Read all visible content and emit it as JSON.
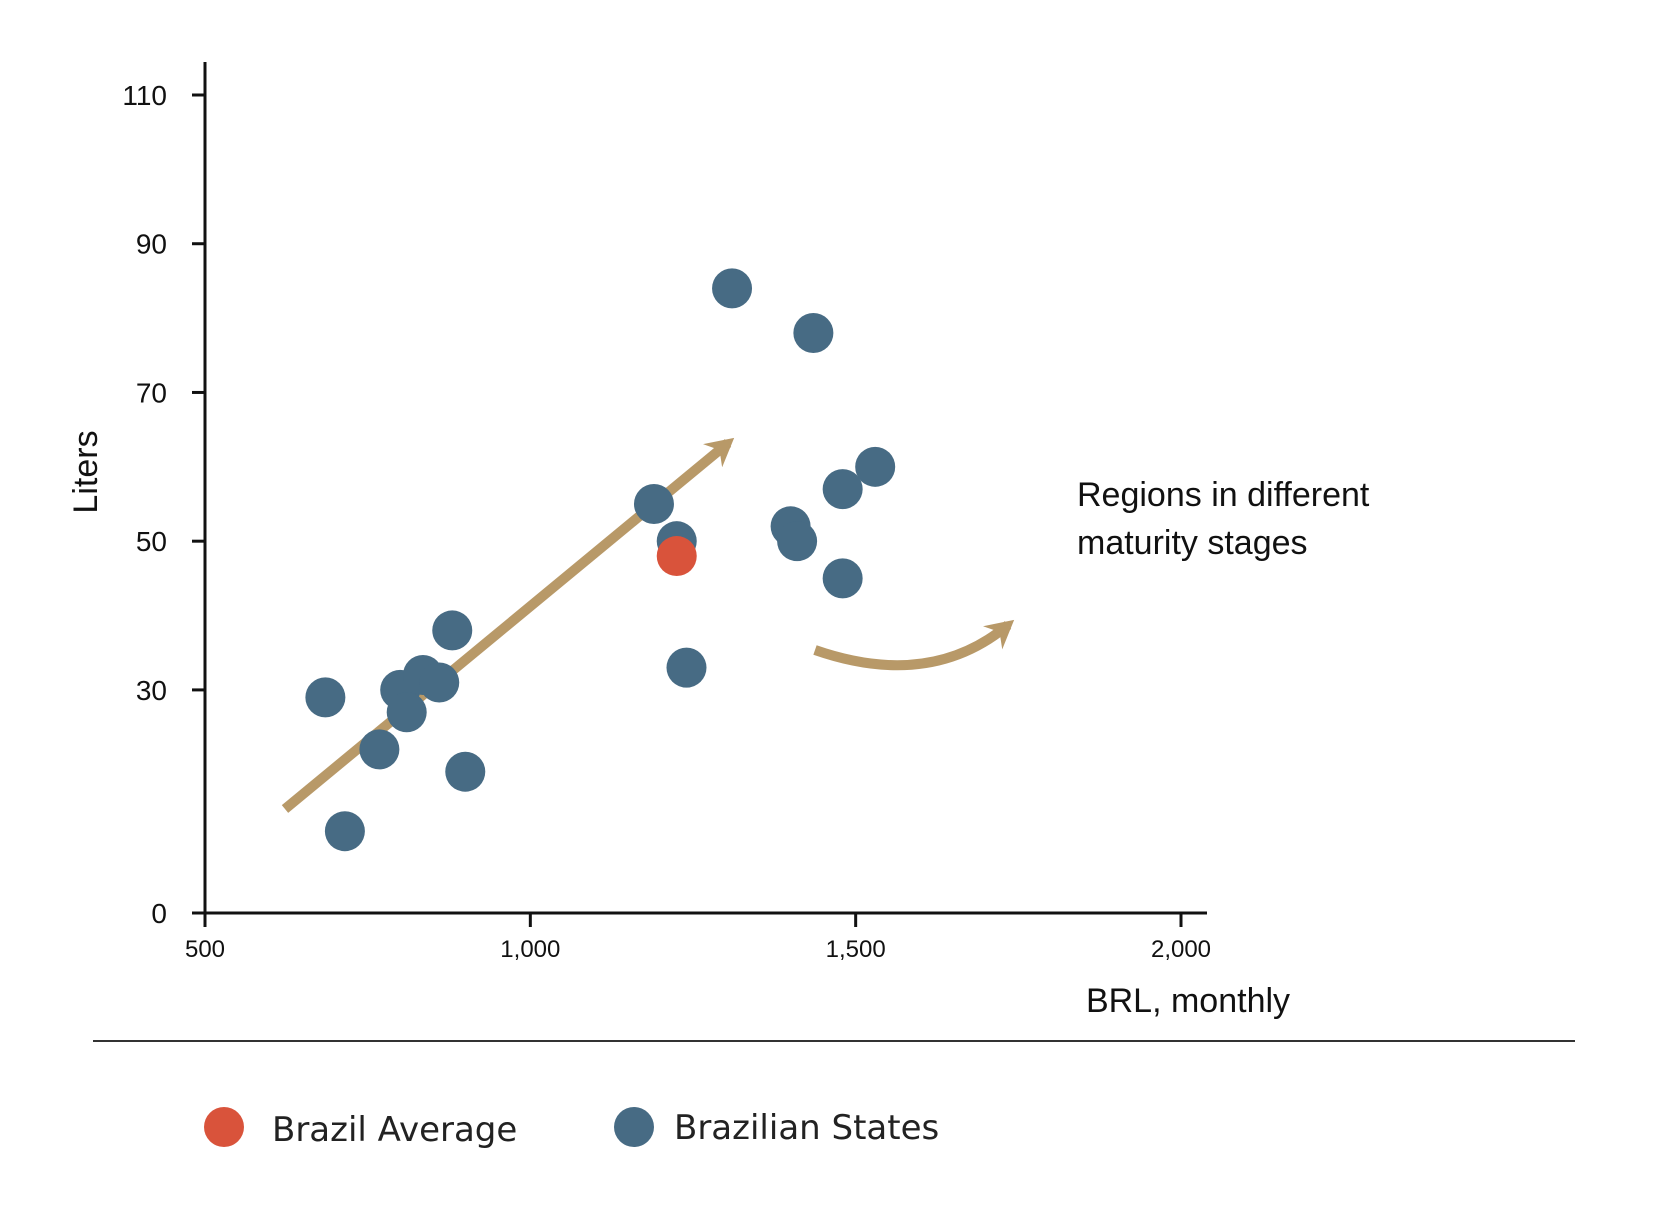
{
  "chart_data": {
    "type": "scatter",
    "title": "",
    "xlabel": "BRL, monthly",
    "ylabel": "Liters",
    "xlim": [
      500,
      2000
    ],
    "ylim": [
      0,
      110
    ],
    "x_ticks": [
      500,
      1000,
      1500,
      2000
    ],
    "x_tick_labels": [
      "500",
      "1,000",
      "1,500",
      "2,000"
    ],
    "y_ticks": [
      0,
      30,
      50,
      70,
      90,
      110
    ],
    "y_tick_labels": [
      "0",
      "30",
      "50",
      "70",
      "90",
      "110"
    ],
    "grid": false,
    "legend_position": "bottom",
    "series": [
      {
        "name": "Brazil Average",
        "color": "#d9533b",
        "points": [
          {
            "x": 1225,
            "y": 48
          }
        ]
      },
      {
        "name": "Brazilian States",
        "color": "#476b84",
        "points": [
          {
            "x": 685,
            "y": 29
          },
          {
            "x": 715,
            "y": 11
          },
          {
            "x": 768,
            "y": 22
          },
          {
            "x": 800,
            "y": 30
          },
          {
            "x": 810,
            "y": 27
          },
          {
            "x": 835,
            "y": 32
          },
          {
            "x": 860,
            "y": 31
          },
          {
            "x": 880,
            "y": 38
          },
          {
            "x": 900,
            "y": 19
          },
          {
            "x": 1190,
            "y": 55
          },
          {
            "x": 1225,
            "y": 50
          },
          {
            "x": 1240,
            "y": 33
          },
          {
            "x": 1310,
            "y": 84
          },
          {
            "x": 1400,
            "y": 52
          },
          {
            "x": 1410,
            "y": 50
          },
          {
            "x": 1435,
            "y": 78
          },
          {
            "x": 1480,
            "y": 57
          },
          {
            "x": 1480,
            "y": 45
          },
          {
            "x": 1530,
            "y": 60
          }
        ]
      }
    ],
    "annotations": [
      {
        "text_lines": [
          "Regions in different",
          "maturity stages"
        ]
      }
    ]
  },
  "theme": {
    "axis_color": "#111111",
    "arrow_color": "#b89968",
    "divider_color": "#333333"
  }
}
